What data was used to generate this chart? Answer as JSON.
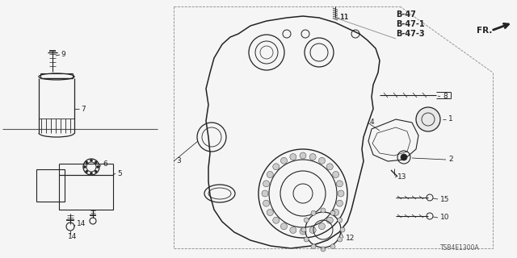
{
  "bg_color": "#f5f5f5",
  "line_color": "#222222",
  "diagram_code": "TSB4E1300A",
  "ref_codes": [
    "B-47",
    "B-47-1",
    "B-47-3"
  ],
  "figsize": [
    6.4,
    3.2
  ],
  "dpi": 100
}
